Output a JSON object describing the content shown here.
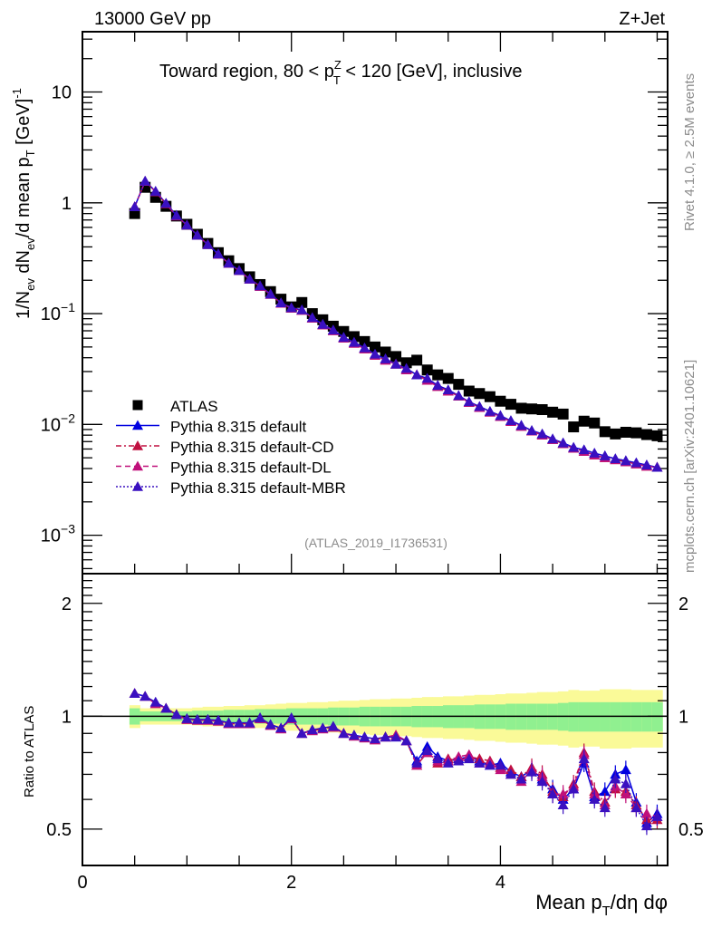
{
  "header": {
    "left": "13000 GeV pp",
    "right": "Z+Jet"
  },
  "side_labels": {
    "rivet": "Rivet 4.1.0, ≥ 2.5M events",
    "mcplots": "mcplots.cern.ch [arXiv:2401.10621]"
  },
  "chart_data": [
    {
      "type": "scatter",
      "panel": "main",
      "title": "Toward region, 80 < p_T^Z < 120 [GeV], inclusive",
      "title_parts": {
        "pre": "Toward region, 80 < p",
        "sup": "Z",
        "sub": "T",
        "post": " < 120 [GeV], inclusive"
      },
      "ylabel": "1/N_ev dN_ev/d mean p_T [GeV]^-1",
      "ylabel_parts": {
        "a": "1/N",
        "a_sub": "ev",
        "b": " dN",
        "b_sub": "ev",
        "c": "/d mean p",
        "c_sub": "T",
        "d": " [GeV]",
        "d_sup": "-1"
      },
      "xlabel": "Mean p_T/dη dφ",
      "xlabel_parts": {
        "a": "Mean p",
        "a_sub": "T",
        "b": "/dη dφ"
      },
      "yscale": "log",
      "ylim": [
        0.00045,
        35
      ],
      "xlim": [
        0,
        5.6
      ],
      "yticks": [
        {
          "v": 10,
          "base": "10",
          "exp": ""
        },
        {
          "v": 1,
          "base": "1",
          "exp": ""
        },
        {
          "v": 0.1,
          "base": "10",
          "exp": "−1"
        },
        {
          "v": 0.01,
          "base": "10",
          "exp": "−2"
        },
        {
          "v": 0.001,
          "base": "10",
          "exp": "−3"
        }
      ],
      "xticks": [
        0,
        2,
        4
      ],
      "annotation": "(ATLAS_2019_I1736531)",
      "legend_position": "middle-left",
      "x": [
        0.5,
        0.6,
        0.7,
        0.8,
        0.9,
        1.0,
        1.1,
        1.2,
        1.3,
        1.4,
        1.5,
        1.6,
        1.7,
        1.8,
        1.9,
        2.0,
        2.1,
        2.2,
        2.3,
        2.4,
        2.5,
        2.6,
        2.7,
        2.8,
        2.9,
        3.0,
        3.1,
        3.2,
        3.3,
        3.4,
        3.5,
        3.6,
        3.7,
        3.8,
        3.9,
        4.0,
        4.1,
        4.2,
        4.3,
        4.4,
        4.5,
        4.6,
        4.7,
        4.8,
        4.9,
        5.0,
        5.1,
        5.2,
        5.3,
        5.4,
        5.5
      ],
      "series": [
        {
          "name": "ATLAS",
          "marker": "square",
          "color": "#000000",
          "line": "none",
          "values": [
            0.8,
            1.38,
            1.12,
            0.93,
            0.76,
            0.64,
            0.52,
            0.43,
            0.355,
            0.3,
            0.255,
            0.215,
            0.183,
            0.158,
            0.135,
            0.115,
            0.126,
            0.1,
            0.088,
            0.077,
            0.069,
            0.062,
            0.056,
            0.05,
            0.045,
            0.041,
            0.036,
            0.038,
            0.031,
            0.028,
            0.026,
            0.023,
            0.02,
            0.019,
            0.0178,
            0.0162,
            0.0152,
            0.014,
            0.0138,
            0.0136,
            0.0129,
            0.0124,
            0.0095,
            0.0107,
            0.0103,
            0.0086,
            0.0082,
            0.0085,
            0.0084,
            0.0081,
            0.0079
          ]
        },
        {
          "name": "Pythia 8.315 default",
          "marker": "triangle",
          "color": "#0000e0",
          "line": "solid",
          "values": [
            0.92,
            1.57,
            1.27,
            0.99,
            0.77,
            0.63,
            0.51,
            0.42,
            0.345,
            0.285,
            0.245,
            0.205,
            0.178,
            0.15,
            0.125,
            0.113,
            0.108,
            0.092,
            0.08,
            0.071,
            0.061,
            0.055,
            0.049,
            0.043,
            0.039,
            0.035,
            0.032,
            0.028,
            0.026,
            0.0225,
            0.0205,
            0.0182,
            0.016,
            0.0145,
            0.0131,
            0.012,
            0.0108,
            0.0098,
            0.0088,
            0.0082,
            0.0074,
            0.0068,
            0.0062,
            0.0059,
            0.0055,
            0.0052,
            0.0049,
            0.0047,
            0.0045,
            0.0043,
            0.0041
          ]
        },
        {
          "name": "Pythia 8.315 default-CD",
          "marker": "triangle",
          "color": "#c01040",
          "line": "dashdot",
          "values": [
            0.92,
            1.56,
            1.26,
            0.98,
            0.76,
            0.63,
            0.51,
            0.42,
            0.343,
            0.284,
            0.244,
            0.204,
            0.176,
            0.149,
            0.124,
            0.112,
            0.107,
            0.091,
            0.079,
            0.07,
            0.06,
            0.054,
            0.048,
            0.042,
            0.038,
            0.035,
            0.031,
            0.028,
            0.025,
            0.022,
            0.02,
            0.018,
            0.0158,
            0.0142,
            0.0129,
            0.0118,
            0.0106,
            0.0096,
            0.0087,
            0.008,
            0.0073,
            0.0067,
            0.0061,
            0.0057,
            0.0053,
            0.005,
            0.0048,
            0.0046,
            0.0044,
            0.0042,
            0.0041
          ]
        },
        {
          "name": "Pythia 8.315 default-DL",
          "marker": "triangle",
          "color": "#c0107a",
          "line": "dashed",
          "values": [
            0.92,
            1.56,
            1.26,
            0.98,
            0.76,
            0.63,
            0.51,
            0.42,
            0.343,
            0.284,
            0.244,
            0.204,
            0.176,
            0.149,
            0.124,
            0.112,
            0.107,
            0.091,
            0.079,
            0.07,
            0.06,
            0.054,
            0.048,
            0.042,
            0.038,
            0.035,
            0.031,
            0.028,
            0.025,
            0.022,
            0.02,
            0.018,
            0.0158,
            0.0142,
            0.0129,
            0.0118,
            0.0106,
            0.0096,
            0.0087,
            0.008,
            0.0073,
            0.0067,
            0.0061,
            0.0057,
            0.0053,
            0.005,
            0.0048,
            0.0046,
            0.0044,
            0.0042,
            0.0041
          ]
        },
        {
          "name": "Pythia 8.315 default-MBR",
          "marker": "triangle",
          "color": "#3a10c0",
          "line": "dotted",
          "values": [
            0.92,
            1.57,
            1.27,
            0.99,
            0.77,
            0.63,
            0.51,
            0.42,
            0.345,
            0.285,
            0.245,
            0.205,
            0.178,
            0.15,
            0.125,
            0.113,
            0.108,
            0.092,
            0.08,
            0.071,
            0.061,
            0.055,
            0.049,
            0.043,
            0.039,
            0.035,
            0.032,
            0.028,
            0.026,
            0.0225,
            0.0205,
            0.0182,
            0.016,
            0.0145,
            0.0131,
            0.012,
            0.0108,
            0.0098,
            0.0088,
            0.0082,
            0.0074,
            0.0068,
            0.0062,
            0.0059,
            0.0055,
            0.0052,
            0.0049,
            0.0047,
            0.0045,
            0.0043,
            0.0041
          ]
        }
      ]
    },
    {
      "type": "scatter",
      "panel": "ratio",
      "ylabel": "Ratio to ATLAS",
      "yscale": "log",
      "ylim": [
        0.4,
        2.4
      ],
      "xlim": [
        0,
        5.6
      ],
      "yticks": [
        {
          "v": 2,
          "label": "2"
        },
        {
          "v": 1,
          "label": "1"
        },
        {
          "v": 0.5,
          "label": "0.5"
        }
      ],
      "reference_line": 1,
      "bands": {
        "inner_color": "#90f090",
        "outer_color": "#fafa98",
        "inner_halfwidth": [
          0.05,
          0.03,
          0.03,
          0.03,
          0.03,
          0.03,
          0.035,
          0.035,
          0.035,
          0.04,
          0.04,
          0.04,
          0.045,
          0.045,
          0.045,
          0.05,
          0.05,
          0.05,
          0.05,
          0.055,
          0.055,
          0.055,
          0.06,
          0.06,
          0.06,
          0.06,
          0.06,
          0.065,
          0.065,
          0.065,
          0.07,
          0.07,
          0.07,
          0.075,
          0.075,
          0.075,
          0.08,
          0.08,
          0.08,
          0.08,
          0.08,
          0.085,
          0.09,
          0.09,
          0.09,
          0.09,
          0.09,
          0.09,
          0.09,
          0.09,
          0.09
        ],
        "outer_halfwidth": [
          0.07,
          0.05,
          0.05,
          0.05,
          0.05,
          0.05,
          0.055,
          0.06,
          0.06,
          0.065,
          0.065,
          0.07,
          0.07,
          0.075,
          0.08,
          0.085,
          0.085,
          0.09,
          0.09,
          0.095,
          0.1,
          0.1,
          0.105,
          0.11,
          0.11,
          0.115,
          0.115,
          0.12,
          0.125,
          0.125,
          0.13,
          0.13,
          0.135,
          0.14,
          0.14,
          0.145,
          0.15,
          0.15,
          0.155,
          0.16,
          0.16,
          0.165,
          0.175,
          0.17,
          0.17,
          0.18,
          0.18,
          0.18,
          0.175,
          0.175,
          0.175
        ]
      },
      "series": [
        {
          "name": "Pythia 8.315 default",
          "color": "#0000e0",
          "line": "solid",
          "values": [
            1.15,
            1.13,
            1.09,
            1.05,
            1.01,
            0.985,
            0.98,
            0.98,
            0.975,
            0.96,
            0.96,
            0.96,
            0.99,
            0.95,
            0.93,
            0.99,
            0.9,
            0.92,
            0.93,
            0.94,
            0.9,
            0.89,
            0.88,
            0.87,
            0.88,
            0.88,
            0.86,
            0.76,
            0.83,
            0.78,
            0.76,
            0.77,
            0.78,
            0.76,
            0.74,
            0.75,
            0.71,
            0.69,
            0.72,
            0.68,
            0.64,
            0.6,
            0.64,
            0.75,
            0.61,
            0.63,
            0.7,
            0.72,
            0.59,
            0.52,
            0.55
          ]
        },
        {
          "name": "Pythia 8.315 default-CD",
          "color": "#c01040",
          "line": "dashdot",
          "values": [
            1.15,
            1.13,
            1.08,
            1.05,
            1.01,
            0.98,
            0.975,
            0.975,
            0.97,
            0.955,
            0.955,
            0.955,
            0.985,
            0.945,
            0.925,
            0.985,
            0.9,
            0.915,
            0.925,
            0.935,
            0.9,
            0.885,
            0.875,
            0.865,
            0.88,
            0.89,
            0.86,
            0.74,
            0.8,
            0.75,
            0.77,
            0.76,
            0.78,
            0.77,
            0.76,
            0.73,
            0.72,
            0.69,
            0.73,
            0.7,
            0.63,
            0.61,
            0.66,
            0.8,
            0.63,
            0.59,
            0.64,
            0.63,
            0.58,
            0.53,
            0.53
          ]
        },
        {
          "name": "Pythia 8.315 default-DL",
          "color": "#c0107a",
          "line": "dashed",
          "values": [
            1.15,
            1.13,
            1.08,
            1.05,
            1.01,
            0.98,
            0.975,
            0.975,
            0.97,
            0.955,
            0.955,
            0.955,
            0.985,
            0.945,
            0.925,
            0.985,
            0.9,
            0.915,
            0.925,
            0.935,
            0.9,
            0.885,
            0.875,
            0.865,
            0.88,
            0.89,
            0.86,
            0.74,
            0.8,
            0.76,
            0.76,
            0.78,
            0.79,
            0.75,
            0.75,
            0.72,
            0.7,
            0.67,
            0.72,
            0.69,
            0.62,
            0.62,
            0.65,
            0.79,
            0.62,
            0.58,
            0.65,
            0.62,
            0.57,
            0.55,
            0.54
          ]
        },
        {
          "name": "Pythia 8.315 default-MBR",
          "color": "#3a10c0",
          "line": "dotted",
          "values": [
            1.15,
            1.13,
            1.09,
            1.05,
            1.01,
            0.985,
            0.98,
            0.98,
            0.975,
            0.96,
            0.96,
            0.96,
            0.99,
            0.95,
            0.93,
            0.99,
            0.9,
            0.92,
            0.93,
            0.94,
            0.9,
            0.89,
            0.88,
            0.87,
            0.88,
            0.88,
            0.86,
            0.75,
            0.81,
            0.77,
            0.75,
            0.76,
            0.77,
            0.75,
            0.74,
            0.74,
            0.7,
            0.68,
            0.71,
            0.67,
            0.62,
            0.58,
            0.64,
            0.77,
            0.6,
            0.57,
            0.68,
            0.66,
            0.57,
            0.51,
            0.54
          ]
        }
      ]
    }
  ]
}
